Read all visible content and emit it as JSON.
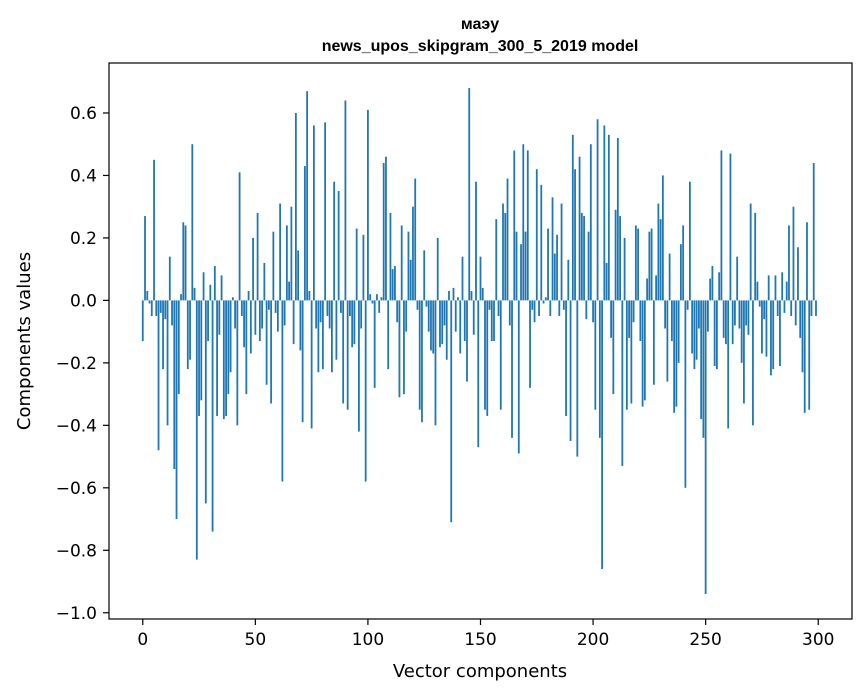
{
  "chart_data": {
    "type": "bar",
    "title_line1": "маэу",
    "title_line2": "news_upos_skipgram_300_5_2019 model",
    "xlabel": "Vector components",
    "ylabel": "Components values",
    "xlim": [
      -15,
      315
    ],
    "ylim": [
      -1.02,
      0.76
    ],
    "x_ticks": [
      0,
      50,
      100,
      150,
      200,
      250,
      300
    ],
    "x_tick_labels": [
      "0",
      "50",
      "100",
      "150",
      "200",
      "250",
      "300"
    ],
    "y_ticks": [
      -1.0,
      -0.8,
      -0.6,
      -0.4,
      -0.2,
      0.0,
      0.2,
      0.4,
      0.6
    ],
    "y_tick_labels": [
      "−1.0",
      "−0.8",
      "−0.6",
      "−0.4",
      "−0.2",
      "0.0",
      "0.2",
      "0.4",
      "0.6"
    ],
    "bar_color": "#1f77b4",
    "values": [
      -0.13,
      0.27,
      0.03,
      -0.01,
      -0.05,
      0.45,
      -0.05,
      -0.48,
      -0.04,
      -0.22,
      -0.06,
      -0.4,
      0.14,
      -0.08,
      -0.54,
      -0.7,
      -0.3,
      0.02,
      0.25,
      0.24,
      -0.22,
      -0.19,
      0.5,
      0.04,
      -0.83,
      -0.37,
      -0.32,
      0.09,
      -0.65,
      -0.13,
      0.05,
      -0.74,
      0.11,
      -0.37,
      -0.11,
      0.08,
      -0.38,
      -0.37,
      -0.3,
      -0.23,
      0.01,
      -0.09,
      -0.4,
      0.41,
      -0.05,
      -0.15,
      -0.3,
      0.03,
      -0.17,
      0.2,
      -0.11,
      0.28,
      -0.13,
      -0.09,
      0.12,
      -0.27,
      -0.03,
      -0.33,
      0.22,
      -0.04,
      -0.1,
      0.31,
      -0.58,
      -0.08,
      0.24,
      0.06,
      0.3,
      -0.14,
      0.6,
      0.16,
      -0.16,
      -0.39,
      0.43,
      0.67,
      0.03,
      -0.41,
      0.56,
      -0.09,
      -0.23,
      -0.07,
      -0.22,
      0.57,
      -0.05,
      -0.09,
      -0.23,
      0.38,
      -0.19,
      0.35,
      -0.04,
      -0.33,
      0.64,
      -0.35,
      -0.05,
      -0.15,
      -0.14,
      0.23,
      -0.42,
      -0.09,
      0.21,
      -0.58,
      0.61,
      0.02,
      -0.01,
      -0.28,
      0.02,
      -0.04,
      0.01,
      0.44,
      0.46,
      -0.22,
      0.28,
      0.1,
      0.11,
      -0.07,
      -0.31,
      0.24,
      -0.3,
      -0.1,
      0.22,
      0.13,
      0.3,
      0.39,
      -0.03,
      -0.35,
      -0.39,
      0.16,
      -0.02,
      -0.1,
      -0.16,
      -0.17,
      -0.4,
      0.2,
      -0.15,
      -0.14,
      -0.08,
      -0.19,
      0.03,
      -0.71,
      0.04,
      -0.1,
      0.01,
      -0.17,
      0.14,
      -0.13,
      -0.26,
      0.68,
      0.03,
      -0.11,
      0.38,
      -0.47,
      0.14,
      0.04,
      -0.35,
      -0.37,
      -0.03,
      -0.13,
      -0.13,
      0.26,
      -0.05,
      -0.35,
      0.31,
      0.28,
      0.39,
      -0.08,
      -0.44,
      0.48,
      0.22,
      -0.49,
      0.18,
      0.5,
      0.22,
      0.48,
      -0.28,
      -0.03,
      -0.07,
      0.42,
      -0.05,
      0.37,
      -0.01,
      0.01,
      0.23,
      -0.05,
      0.33,
      0.15,
      0.21,
      -0.05,
      0.31,
      -0.03,
      -0.37,
      0.13,
      -0.45,
      0.53,
      0.42,
      -0.5,
      0.46,
      0.28,
      0.27,
      -0.06,
      0.22,
      0.5,
      -0.07,
      -0.35,
      0.58,
      -0.44,
      -0.86,
      0.56,
      0.12,
      0.53,
      -0.12,
      -0.3,
      0.29,
      0.52,
      0.27,
      -0.53,
      0.2,
      -0.35,
      -0.12,
      -0.33,
      -0.07,
      0.24,
      0.23,
      -0.13,
      -0.34,
      -0.32,
      0.07,
      0.22,
      0.23,
      -0.27,
      0.08,
      0.31,
      0.26,
      0.4,
      -0.09,
      -0.26,
      0.15,
      -0.13,
      -0.36,
      -0.34,
      -0.2,
      0.18,
      0.24,
      -0.6,
      -0.03,
      0.38,
      -0.17,
      -0.22,
      -0.19,
      -0.09,
      -0.38,
      -0.44,
      -0.94,
      -0.1,
      0.07,
      0.11,
      -0.21,
      -0.22,
      0.09,
      0.48,
      -0.12,
      -0.14,
      -0.41,
      0.47,
      -0.14,
      -0.08,
      0.14,
      -0.09,
      -0.2,
      -0.33,
      -0.08,
      -0.11,
      0.31,
      -0.4,
      0.28,
      0.06,
      -0.02,
      -0.17,
      -0.06,
      -0.18,
      0.08,
      -0.24,
      -0.22,
      0.08,
      -0.05,
      -0.21,
      0.09,
      -0.04,
      0.06,
      0.24,
      -0.05,
      0.3,
      -0.08,
      0.17,
      -0.12,
      -0.23,
      -0.36,
      0.25,
      -0.35,
      -0.05,
      0.44,
      -0.05
    ]
  }
}
